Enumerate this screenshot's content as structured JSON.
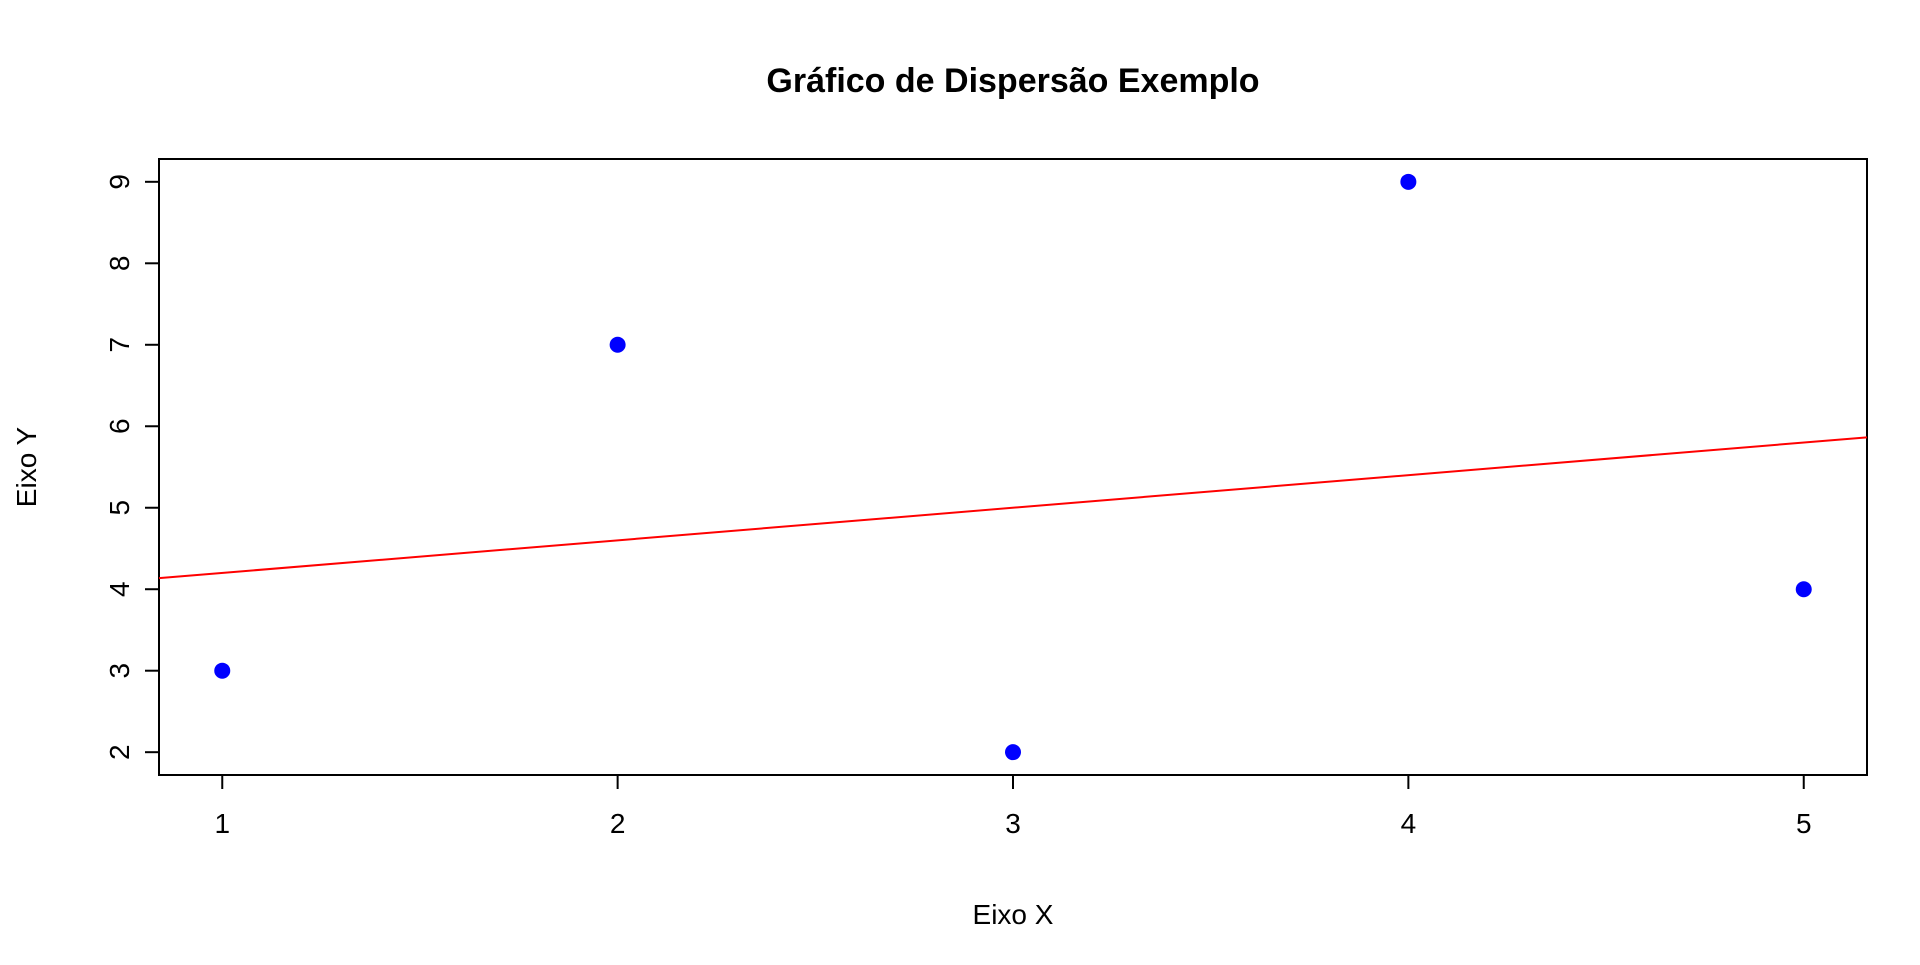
{
  "chart_data": {
    "type": "scatter",
    "title": "Gráfico de Dispersão Exemplo",
    "xlabel": "Eixo X",
    "ylabel": "Eixo Y",
    "xlim": [
      0.84,
      5.16
    ],
    "ylim": [
      1.72,
      9.28
    ],
    "x_ticks": [
      1,
      2,
      3,
      4,
      5
    ],
    "y_ticks": [
      2,
      3,
      4,
      5,
      6,
      7,
      8,
      9
    ],
    "series": [
      {
        "x": [
          1,
          2,
          3,
          4,
          5
        ],
        "y": [
          3,
          7,
          2,
          9,
          4
        ],
        "color": "#0000ff"
      }
    ],
    "trend_line": {
      "intercept": 3.8,
      "slope": 0.4,
      "color": "#ff0000"
    },
    "grid": false,
    "legend": "none"
  }
}
